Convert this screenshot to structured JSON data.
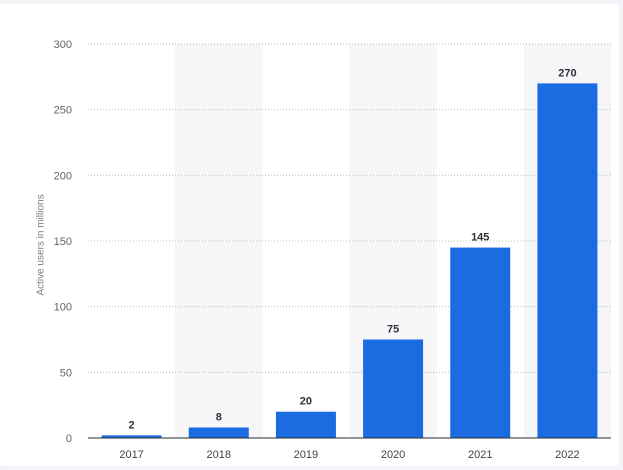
{
  "chart_data": {
    "type": "bar",
    "title": "",
    "xlabel": "",
    "ylabel": "Active users in millions",
    "categories": [
      "2017",
      "2018",
      "2019",
      "2020",
      "2021",
      "2022"
    ],
    "values": [
      2,
      8,
      20,
      75,
      145,
      270
    ],
    "data_labels": [
      "2",
      "8",
      "20",
      "75",
      "145",
      "270"
    ],
    "ylim": [
      0,
      300
    ],
    "y_ticks": [
      0,
      50,
      100,
      150,
      200,
      250,
      300
    ],
    "y_tick_labels": [
      "0",
      "50",
      "100",
      "150",
      "200",
      "250",
      "300"
    ],
    "grid": true,
    "legend": "none",
    "shaded_columns": [
      1,
      3,
      5
    ]
  },
  "colors": {
    "bar": "#1a6ce0",
    "band": "#f6f6f9",
    "grid": "#b9bcc2",
    "axis": "#2b2d31"
  }
}
